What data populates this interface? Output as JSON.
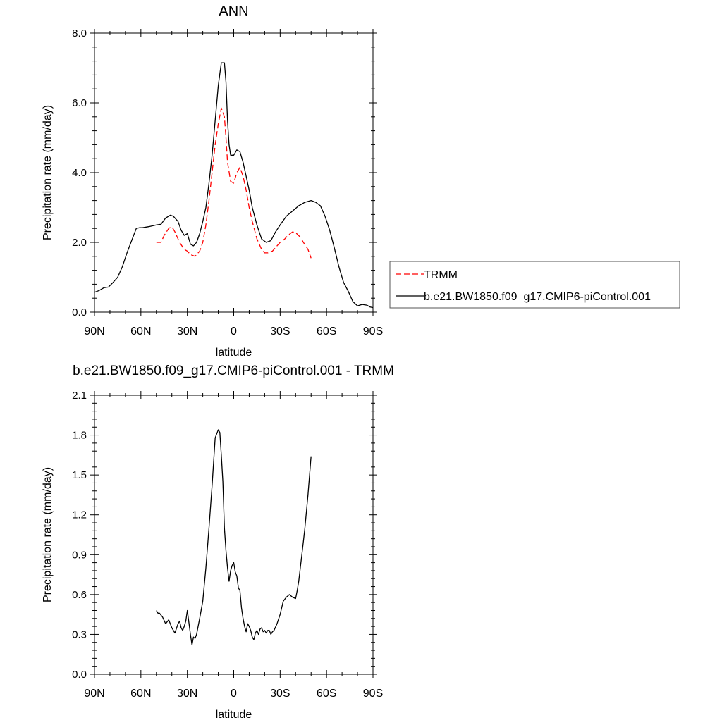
{
  "chart_data": [
    {
      "type": "line",
      "title": "ANN",
      "xlabel": "latitude",
      "ylabel": "Precipitation rate (mm/day)",
      "xlim": [
        90,
        -90
      ],
      "ylim": [
        0,
        8
      ],
      "x_ticks": [
        90,
        60,
        30,
        0,
        -30,
        -60,
        -90
      ],
      "x_tick_labels": [
        "90N",
        "60N",
        "30N",
        "0",
        "30S",
        "60S",
        "90S"
      ],
      "y_ticks": [
        0,
        2,
        4,
        6,
        8
      ],
      "y_tick_labels": [
        "0.0",
        "2.0",
        "4.0",
        "6.0",
        "8.0"
      ],
      "legend": {
        "placement": "right",
        "entries": [
          {
            "label": "TRMM",
            "color": "#ff0000",
            "style": "dashed"
          },
          {
            "label": "b.e21.BW1850.f09_g17.CMIP6-piControl.001",
            "color": "#000000",
            "style": "solid"
          }
        ]
      },
      "series": [
        {
          "name": "TRMM",
          "color": "#ff0000",
          "style": "dashed",
          "x": [
            50,
            47,
            45,
            42,
            40,
            38,
            35,
            32,
            30,
            28,
            25,
            22,
            20,
            18,
            16,
            14,
            12,
            10,
            8,
            6,
            5,
            4,
            2,
            0,
            -2,
            -4,
            -6,
            -8,
            -10,
            -12,
            -15,
            -18,
            -20,
            -22,
            -25,
            -28,
            -30,
            -33,
            -35,
            -38,
            -40,
            -43,
            -45,
            -48,
            -50
          ],
          "y": [
            2.0,
            2.0,
            2.2,
            2.4,
            2.45,
            2.3,
            2.0,
            1.8,
            1.75,
            1.65,
            1.6,
            1.75,
            2.0,
            2.5,
            3.2,
            4.0,
            4.8,
            5.4,
            5.85,
            5.6,
            5.0,
            4.3,
            3.75,
            3.7,
            4.0,
            4.15,
            3.9,
            3.5,
            3.0,
            2.6,
            2.1,
            1.8,
            1.7,
            1.7,
            1.75,
            1.9,
            2.0,
            2.1,
            2.2,
            2.3,
            2.28,
            2.15,
            2.0,
            1.8,
            1.55
          ]
        },
        {
          "name": "b.e21.BW1850.f09_g17.CMIP6-piControl.001",
          "color": "#000000",
          "style": "solid",
          "x": [
            90,
            87,
            84,
            81,
            78,
            75,
            72,
            69,
            66,
            63,
            61,
            59,
            55,
            50,
            47,
            44,
            41,
            39,
            36,
            34,
            32,
            30,
            28,
            26,
            24,
            22,
            20,
            18,
            16,
            14,
            12,
            10,
            8,
            6,
            5,
            4,
            3,
            2,
            0,
            -2,
            -4,
            -6,
            -8,
            -10,
            -12,
            -15,
            -18,
            -21,
            -24,
            -27,
            -30,
            -34,
            -38,
            -42,
            -46,
            -50,
            -53,
            -56,
            -59,
            -62,
            -65,
            -68,
            -71,
            -74,
            -77,
            -80,
            -83,
            -86,
            -88,
            -90
          ],
          "y": [
            0.57,
            0.62,
            0.7,
            0.72,
            0.85,
            1.0,
            1.3,
            1.7,
            2.05,
            2.4,
            2.42,
            2.42,
            2.45,
            2.5,
            2.52,
            2.7,
            2.78,
            2.75,
            2.6,
            2.35,
            2.2,
            2.25,
            1.95,
            1.9,
            2.0,
            2.25,
            2.6,
            3.0,
            3.7,
            4.5,
            5.5,
            6.5,
            7.15,
            7.15,
            6.6,
            5.5,
            4.8,
            4.5,
            4.5,
            4.65,
            4.6,
            4.3,
            3.9,
            3.5,
            3.0,
            2.5,
            2.1,
            2.0,
            2.05,
            2.3,
            2.5,
            2.75,
            2.9,
            3.05,
            3.15,
            3.2,
            3.15,
            3.05,
            2.75,
            2.35,
            1.85,
            1.3,
            0.85,
            0.6,
            0.3,
            0.18,
            0.22,
            0.2,
            0.15,
            0.13
          ]
        }
      ]
    },
    {
      "type": "line",
      "title": "b.e21.BW1850.f09_g17.CMIP6-piControl.001 - TRMM",
      "xlabel": "latitude",
      "ylabel": "Precipitation rate (mm/day)",
      "xlim": [
        90,
        -90
      ],
      "ylim": [
        0,
        2.1
      ],
      "x_ticks": [
        90,
        60,
        30,
        0,
        -30,
        -60,
        -90
      ],
      "x_tick_labels": [
        "90N",
        "60N",
        "30N",
        "0",
        "30S",
        "60S",
        "90S"
      ],
      "y_ticks": [
        0,
        0.3,
        0.6,
        0.9,
        1.2,
        1.5,
        1.8,
        2.1
      ],
      "y_tick_labels": [
        "0.0",
        "0.3",
        "0.6",
        "0.9",
        "1.2",
        "1.5",
        "1.8",
        "2.1"
      ],
      "series": [
        {
          "color": "#000000",
          "style": "solid",
          "x": [
            50,
            49,
            48,
            46,
            44,
            42,
            40,
            38,
            36,
            35,
            34,
            33,
            32,
            31,
            30,
            28,
            27,
            26,
            25,
            24,
            22,
            20,
            18,
            16,
            14,
            12,
            10,
            9,
            8,
            7,
            6,
            5,
            4,
            3,
            2,
            1,
            0,
            -1,
            -2,
            -3,
            -4,
            -5,
            -6,
            -7,
            -8,
            -9,
            -10,
            -11,
            -12,
            -13,
            -14,
            -15,
            -16,
            -17,
            -18,
            -19,
            -20,
            -21,
            -22,
            -23,
            -24,
            -25,
            -26,
            -28,
            -30,
            -32,
            -34,
            -36,
            -38,
            -40,
            -41,
            -42,
            -43,
            -44,
            -45,
            -46,
            -48,
            -50
          ],
          "y": [
            0.48,
            0.46,
            0.46,
            0.43,
            0.38,
            0.41,
            0.35,
            0.31,
            0.38,
            0.4,
            0.35,
            0.33,
            0.36,
            0.4,
            0.48,
            0.3,
            0.22,
            0.28,
            0.27,
            0.3,
            0.42,
            0.55,
            0.8,
            1.1,
            1.42,
            1.78,
            1.84,
            1.82,
            1.65,
            1.45,
            1.1,
            0.93,
            0.8,
            0.7,
            0.78,
            0.82,
            0.84,
            0.77,
            0.74,
            0.65,
            0.63,
            0.5,
            0.42,
            0.36,
            0.32,
            0.38,
            0.36,
            0.33,
            0.28,
            0.26,
            0.31,
            0.33,
            0.3,
            0.34,
            0.35,
            0.32,
            0.33,
            0.31,
            0.33,
            0.33,
            0.3,
            0.32,
            0.33,
            0.38,
            0.45,
            0.55,
            0.58,
            0.6,
            0.58,
            0.57,
            0.63,
            0.7,
            0.8,
            0.9,
            1.0,
            1.1,
            1.35,
            1.64
          ]
        }
      ]
    }
  ]
}
